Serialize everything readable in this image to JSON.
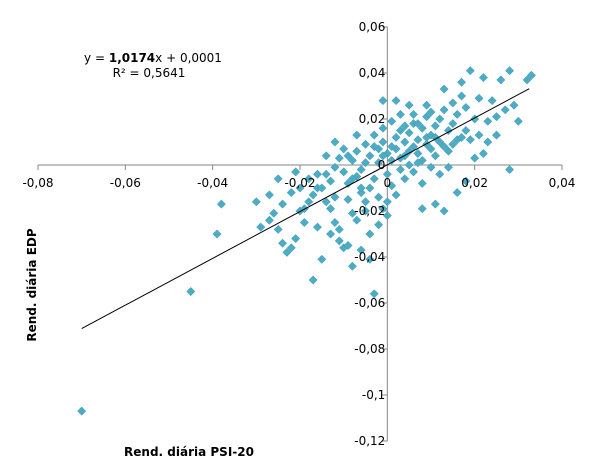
{
  "chart_data": {
    "type": "scatter",
    "xlabel": "Rend. diária PSI-20",
    "ylabel": "Rend. diária EDP",
    "xlim": [
      -0.08,
      0.04
    ],
    "ylim": [
      -0.12,
      0.06
    ],
    "x_ticks": [
      "-0,08",
      "-0,06",
      "-0,04",
      "-0,02",
      "0",
      "0,02",
      "0,04"
    ],
    "y_ticks": [
      "0,06",
      "0,04",
      "0,02",
      "0",
      "-0,02",
      "-0,04",
      "-0,06",
      "-0,08",
      "-0,1",
      "-0,12"
    ],
    "marker_color": "#4BACC6",
    "marker_shape": "diamond",
    "grid": false,
    "trendline": {
      "type": "linear",
      "slope": 1.0174,
      "intercept": 0.0001,
      "x_range": [
        -0.07,
        0.0325
      ],
      "color": "#000000"
    },
    "equation": {
      "prefix": "y = ",
      "slope_text": "1,0174",
      "suffix": "x + 0,0001",
      "r2_text": "R² = 0,5641"
    },
    "points": [
      [
        -0.07,
        -0.107
      ],
      [
        -0.045,
        -0.055
      ],
      [
        -0.038,
        -0.017
      ],
      [
        -0.039,
        -0.03
      ],
      [
        -0.03,
        -0.016
      ],
      [
        -0.029,
        -0.027
      ],
      [
        -0.027,
        -0.013
      ],
      [
        -0.026,
        -0.021
      ],
      [
        -0.025,
        -0.028
      ],
      [
        -0.024,
        -0.034
      ],
      [
        -0.023,
        -0.038
      ],
      [
        -0.022,
        -0.036
      ],
      [
        -0.021,
        -0.032
      ],
      [
        -0.02,
        -0.02
      ],
      [
        -0.019,
        -0.019
      ],
      [
        -0.018,
        -0.016
      ],
      [
        -0.017,
        -0.013
      ],
      [
        -0.016,
        -0.01
      ],
      [
        -0.015,
        -0.01
      ],
      [
        -0.014,
        -0.016
      ],
      [
        -0.013,
        -0.019
      ],
      [
        -0.012,
        -0.025
      ],
      [
        -0.011,
        -0.028
      ],
      [
        -0.011,
        -0.033
      ],
      [
        -0.01,
        -0.036
      ],
      [
        -0.017,
        -0.05
      ],
      [
        -0.015,
        -0.041
      ],
      [
        -0.014,
        -0.004
      ],
      [
        -0.013,
        -0.007
      ],
      [
        -0.012,
        -0.001
      ],
      [
        -0.011,
        0.003
      ],
      [
        -0.01,
        -0.003
      ],
      [
        -0.009,
        -0.008
      ],
      [
        -0.009,
        -0.015
      ],
      [
        -0.008,
        -0.021
      ],
      [
        -0.008,
        0.002
      ],
      [
        -0.007,
        -0.005
      ],
      [
        -0.007,
        0.006
      ],
      [
        -0.006,
        -0.002
      ],
      [
        -0.006,
        -0.012
      ],
      [
        -0.005,
        -0.016
      ],
      [
        -0.005,
        0.001
      ],
      [
        -0.004,
        -0.01
      ],
      [
        -0.004,
        0.004
      ],
      [
        -0.003,
        0.008
      ],
      [
        -0.003,
        -0.006
      ],
      [
        -0.002,
        0.001
      ],
      [
        -0.002,
        -0.014
      ],
      [
        -0.001,
        -0.019
      ],
      [
        -0.001,
        0.01
      ],
      [
        0.0,
        -0.004
      ],
      [
        0.0,
        0.005
      ],
      [
        0.0,
        -0.022
      ],
      [
        0.001,
        0.002
      ],
      [
        0.001,
        -0.009
      ],
      [
        0.002,
        0.007
      ],
      [
        0.002,
        0.012
      ],
      [
        0.003,
        -0.002
      ],
      [
        0.003,
        0.015
      ],
      [
        0.004,
        0.004
      ],
      [
        0.004,
        0.01
      ],
      [
        0.005,
        0.0
      ],
      [
        0.005,
        0.014
      ],
      [
        0.006,
        0.008
      ],
      [
        0.006,
        0.018
      ],
      [
        0.007,
        0.005
      ],
      [
        0.007,
        0.011
      ],
      [
        0.008,
        0.002
      ],
      [
        0.008,
        0.016
      ],
      [
        0.009,
        0.012
      ],
      [
        0.009,
        0.021
      ],
      [
        0.01,
        0.007
      ],
      [
        0.01,
        0.013
      ],
      [
        0.011,
        0.017
      ],
      [
        0.011,
        0.004
      ],
      [
        0.012,
        0.02
      ],
      [
        0.012,
        0.01
      ],
      [
        0.013,
        0.024
      ],
      [
        0.013,
        0.033
      ],
      [
        0.014,
        0.015
      ],
      [
        0.014,
        0.006
      ],
      [
        0.015,
        0.027
      ],
      [
        0.016,
        0.022
      ],
      [
        0.016,
        0.011
      ],
      [
        0.017,
        0.03
      ],
      [
        0.017,
        0.036
      ],
      [
        0.018,
        0.025
      ],
      [
        0.018,
        0.015
      ],
      [
        0.019,
        0.041
      ],
      [
        0.02,
        0.02
      ],
      [
        0.021,
        0.029
      ],
      [
        0.022,
        0.038
      ],
      [
        0.023,
        0.019
      ],
      [
        0.024,
        0.028
      ],
      [
        0.025,
        0.013
      ],
      [
        0.026,
        0.037
      ],
      [
        0.028,
        0.041
      ],
      [
        0.028,
        -0.002
      ],
      [
        0.03,
        0.019
      ],
      [
        0.032,
        0.037
      ],
      [
        0.033,
        0.039
      ],
      [
        0.008,
        -0.019
      ],
      [
        0.011,
        -0.017
      ],
      [
        0.013,
        -0.02
      ],
      [
        0.016,
        -0.012
      ],
      [
        0.018,
        -0.007
      ],
      [
        0.02,
        0.003
      ],
      [
        0.022,
        0.005
      ],
      [
        0.003,
        0.022
      ],
      [
        0.005,
        0.026
      ],
      [
        -0.001,
        0.028
      ],
      [
        0.009,
        0.026
      ],
      [
        0.012,
        -0.004
      ],
      [
        0.014,
        -0.001
      ],
      [
        0.002,
        -0.013
      ],
      [
        0.0,
        -0.016
      ],
      [
        -0.002,
        -0.026
      ],
      [
        -0.004,
        -0.03
      ],
      [
        -0.006,
        -0.037
      ],
      [
        -0.008,
        -0.044
      ],
      [
        -0.003,
        -0.056
      ],
      [
        -0.004,
        -0.041
      ],
      [
        -0.009,
        -0.035
      ],
      [
        -0.003,
        0.013
      ],
      [
        -0.005,
        0.009
      ],
      [
        -0.007,
        0.013
      ],
      [
        -0.009,
        0.004
      ],
      [
        -0.01,
        0.007
      ],
      [
        -0.012,
        0.01
      ],
      [
        -0.014,
        0.004
      ],
      [
        -0.016,
        -0.004
      ],
      [
        -0.018,
        -0.006
      ],
      [
        -0.02,
        -0.01
      ],
      [
        -0.022,
        -0.012
      ],
      [
        -0.024,
        -0.017
      ],
      [
        -0.001,
        0.016
      ],
      [
        0.001,
        0.019
      ],
      [
        0.004,
        0.017
      ],
      [
        0.006,
        0.022
      ],
      [
        0.007,
        0.018
      ],
      [
        0.01,
        0.023
      ],
      [
        0.015,
        0.009
      ],
      [
        0.019,
        0.011
      ],
      [
        0.021,
        0.013
      ],
      [
        0.023,
        0.01
      ],
      [
        0.025,
        0.021
      ],
      [
        0.027,
        0.024
      ],
      [
        0.029,
        0.026
      ],
      [
        0.004,
        -0.006
      ],
      [
        0.006,
        -0.003
      ],
      [
        0.008,
        -0.008
      ],
      [
        0.01,
        -0.001
      ],
      [
        0.001,
        0.008
      ],
      [
        -0.001,
        0.004
      ],
      [
        -0.002,
        0.007
      ],
      [
        0.003,
        0.003
      ],
      [
        0.005,
        0.006
      ],
      [
        0.007,
        0.001
      ],
      [
        0.009,
        0.009
      ],
      [
        0.011,
        0.012
      ],
      [
        0.013,
        0.008
      ],
      [
        0.015,
        0.018
      ],
      [
        0.017,
        0.012
      ],
      [
        -0.019,
        -0.025
      ],
      [
        -0.016,
        -0.027
      ],
      [
        -0.013,
        -0.03
      ],
      [
        -0.021,
        -0.003
      ],
      [
        -0.025,
        -0.006
      ],
      [
        -0.027,
        -0.024
      ],
      [
        -0.005,
        -0.02
      ],
      [
        -0.007,
        -0.024
      ],
      [
        -0.006,
        -0.01
      ],
      [
        -0.008,
        -0.006
      ],
      [
        -0.012,
        -0.014
      ],
      [
        0.002,
        0.028
      ]
    ]
  }
}
